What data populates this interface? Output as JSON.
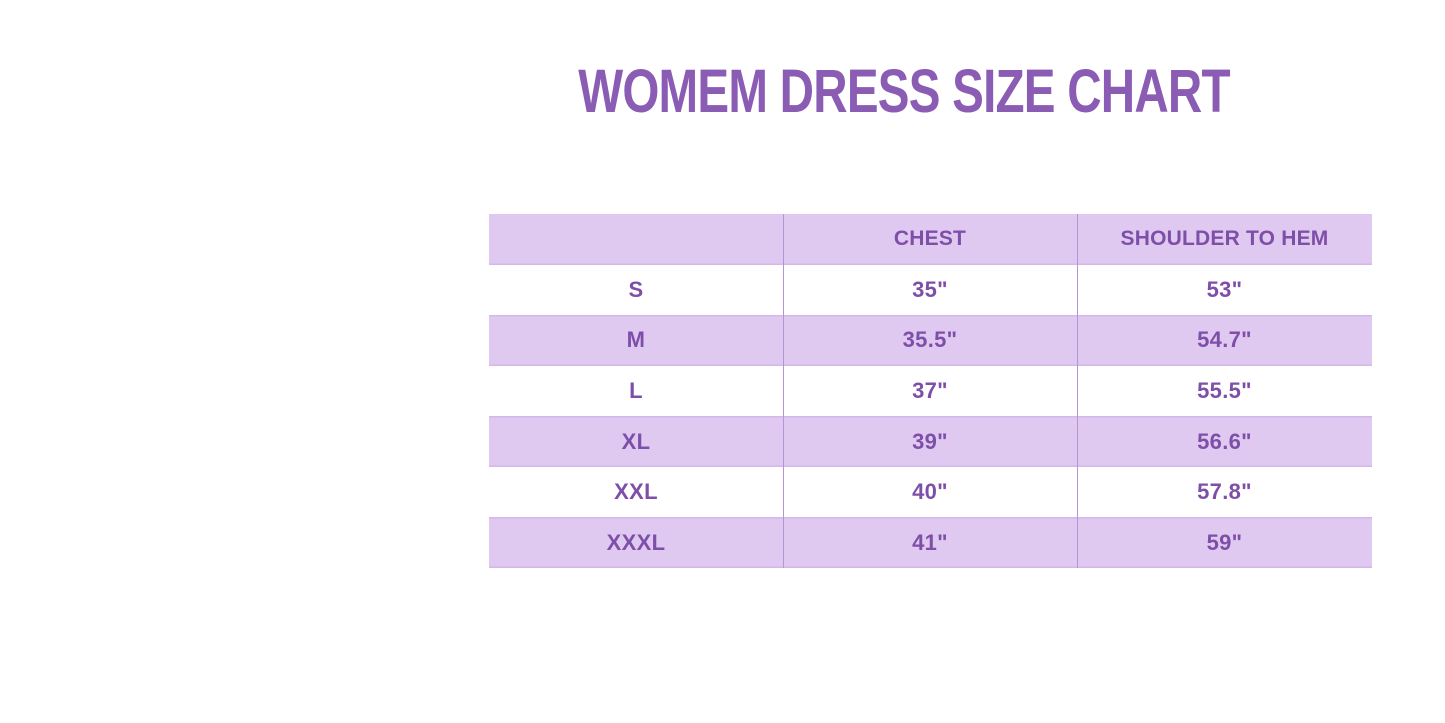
{
  "page": {
    "title": "WOMEM DRESS SIZE CHART"
  },
  "colors": {
    "background": "#ffffff",
    "title_text": "#8a5cb4",
    "cell_text": "#7e4fa8",
    "row_band": "#e0c9f1",
    "band_edge_line": "#d4b6e9",
    "column_divider": "#b394d4"
  },
  "chart_data": {
    "type": "table",
    "title": "WOMEM DRESS SIZE CHART",
    "columns": [
      "",
      "CHEST",
      "SHOULDER TO HEM"
    ],
    "rows": [
      {
        "size": "S",
        "chest": "35\"",
        "hem": "53\""
      },
      {
        "size": "M",
        "chest": "35.5\"",
        "hem": "54.7\""
      },
      {
        "size": "L",
        "chest": "37\"",
        "hem": "55.5\""
      },
      {
        "size": "XL",
        "chest": "39\"",
        "hem": "56.6\""
      },
      {
        "size": "XXL",
        "chest": "40\"",
        "hem": "57.8\""
      },
      {
        "size": "XXXL",
        "chest": "41\"",
        "hem": "59\""
      }
    ],
    "layout": {
      "banded_rows": true,
      "band_pattern": "header and alternating rows (M, XL, XXXL) lavender; S, L, XXL white",
      "header_band": true,
      "grid": "vertical dividers between the three columns only",
      "units": "inches"
    }
  }
}
